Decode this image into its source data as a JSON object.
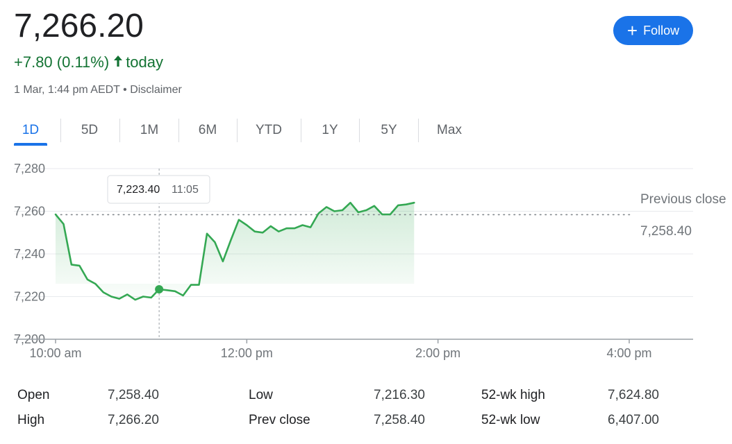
{
  "quote": {
    "price": "7,266.20",
    "change": "+7.80 (0.11%)",
    "change_suffix": "today",
    "timestamp": "1 Mar, 1:44 pm AEDT",
    "separator": "•",
    "disclaimer": "Disclaimer",
    "up_color": "#137333"
  },
  "follow_button": {
    "icon": "plus-icon",
    "label": "Follow",
    "color": "#1a73e8"
  },
  "tabs": [
    {
      "label": "1D",
      "active": true
    },
    {
      "label": "5D",
      "active": false
    },
    {
      "label": "1M",
      "active": false
    },
    {
      "label": "6M",
      "active": false
    },
    {
      "label": "YTD",
      "active": false
    },
    {
      "label": "1Y",
      "active": false
    },
    {
      "label": "5Y",
      "active": false
    },
    {
      "label": "Max",
      "active": false
    }
  ],
  "chart_data": {
    "type": "area",
    "x_unit": "time of day",
    "ylim": [
      7200,
      7280
    ],
    "y_ticks": [
      "7,280",
      "7,260",
      "7,240",
      "7,220",
      "7,200"
    ],
    "x_ticks": [
      "10:00 am",
      "12:00 pm",
      "2:00 pm",
      "4:00 pm"
    ],
    "x_range": [
      "10:00",
      "16:30"
    ],
    "line_color": "#34a853",
    "grid": true,
    "series": [
      {
        "x": [
          "10:00",
          "10:05",
          "10:10",
          "10:15",
          "10:20",
          "10:25",
          "10:30",
          "10:35",
          "10:40",
          "10:45",
          "10:50",
          "10:55",
          "11:00",
          "11:05",
          "11:10",
          "11:15",
          "11:20",
          "11:25",
          "11:30",
          "11:35",
          "11:40",
          "11:45",
          "11:50",
          "11:55",
          "12:00",
          "12:05",
          "12:10",
          "12:15",
          "12:20",
          "12:25",
          "12:30",
          "12:35",
          "12:40",
          "12:45",
          "12:50",
          "12:55",
          "13:00",
          "13:05",
          "13:10",
          "13:15",
          "13:20",
          "13:25",
          "13:30",
          "13:35",
          "13:40",
          "13:45"
        ],
        "y": [
          7258.5,
          7254,
          7235,
          7234.5,
          7228,
          7226,
          7222,
          7220,
          7219,
          7221,
          7218.5,
          7220,
          7219.5,
          7223.4,
          7223,
          7222.5,
          7220.5,
          7225.5,
          7225.5,
          7249.5,
          7245.5,
          7236.5,
          7246.5,
          7256,
          7253.5,
          7250.5,
          7250,
          7253,
          7250.5,
          7252,
          7252,
          7253.5,
          7252.5,
          7259,
          7262,
          7260,
          7260.5,
          7264,
          7259.5,
          7260.5,
          7262.5,
          7258.5,
          7258.5,
          7262.8,
          7263.2,
          7264
        ]
      }
    ],
    "previous_close": {
      "label": "Previous close",
      "value": 7258.4,
      "value_label": "7,258.40"
    },
    "tooltip": {
      "value": "7,223.40",
      "time": "11:05",
      "x": "11:05",
      "y": 7223.4
    }
  },
  "stats": [
    {
      "label": "Open",
      "value": "7,258.40"
    },
    {
      "label": "High",
      "value": "7,266.20"
    },
    {
      "label": "Low",
      "value": "7,216.30"
    },
    {
      "label": "Prev close",
      "value": "7,258.40"
    },
    {
      "label": "52-wk high",
      "value": "7,624.80"
    },
    {
      "label": "52-wk low",
      "value": "6,407.00"
    }
  ]
}
